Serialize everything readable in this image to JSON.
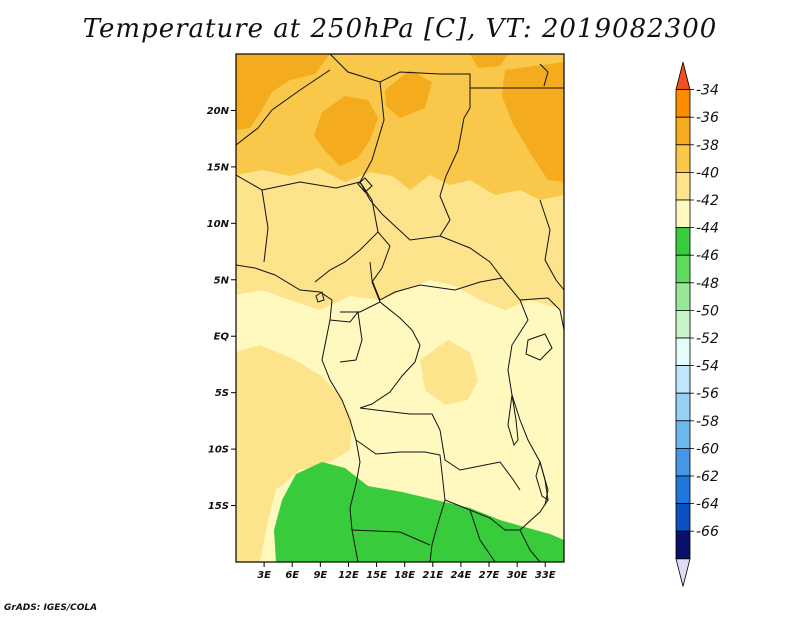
{
  "title": "Temperature at 250hPa [C], VT: 2019082300",
  "credit": "GrADS: IGES/COLA",
  "map": {
    "lon_range": [
      0,
      35
    ],
    "lat_range": [
      -20,
      25
    ],
    "lat_ticks": [
      {
        "value": 20,
        "label": "20N"
      },
      {
        "value": 15,
        "label": "15N"
      },
      {
        "value": 10,
        "label": "10N"
      },
      {
        "value": 5,
        "label": "5N"
      },
      {
        "value": 0,
        "label": "EQ"
      },
      {
        "value": -5,
        "label": "5S"
      },
      {
        "value": -10,
        "label": "10S"
      },
      {
        "value": -15,
        "label": "15S"
      }
    ],
    "lon_ticks": [
      {
        "value": 3,
        "label": "3E"
      },
      {
        "value": 6,
        "label": "6E"
      },
      {
        "value": 9,
        "label": "9E"
      },
      {
        "value": 12,
        "label": "12E"
      },
      {
        "value": 15,
        "label": "15E"
      },
      {
        "value": 18,
        "label": "18E"
      },
      {
        "value": 21,
        "label": "21E"
      },
      {
        "value": 24,
        "label": "24E"
      },
      {
        "value": 27,
        "label": "27E"
      },
      {
        "value": 30,
        "label": "30E"
      },
      {
        "value": 33,
        "label": "33E"
      }
    ]
  },
  "colorbar": {
    "levels": [
      "-34",
      "-36",
      "-38",
      "-40",
      "-42",
      "-44",
      "-46",
      "-48",
      "-50",
      "-52",
      "-54",
      "-56",
      "-58",
      "-60",
      "-62",
      "-64",
      "-66"
    ],
    "colors_top_to_bottom": [
      "#f0501e",
      "#fa8c00",
      "#f4ab1e",
      "#f9c84a",
      "#fde38c",
      "#fff9c0",
      "#38cc3c",
      "#5edc5e",
      "#96e896",
      "#c8f5c8",
      "#e6fbfb",
      "#bfe6fa",
      "#96d0f5",
      "#6eb8f0",
      "#4696e6",
      "#1e78dc",
      "#0a50be",
      "#081068",
      "#dcdcf8"
    ]
  },
  "colors": {
    "t_minus_36_to_38": "#f4ab1e",
    "t_minus_38_to_40": "#f9c84a",
    "t_minus_40_to_42": "#fde38c",
    "t_minus_42_to_44": "#fff9c0",
    "t_minus_44_to_46": "#38cc3c"
  }
}
